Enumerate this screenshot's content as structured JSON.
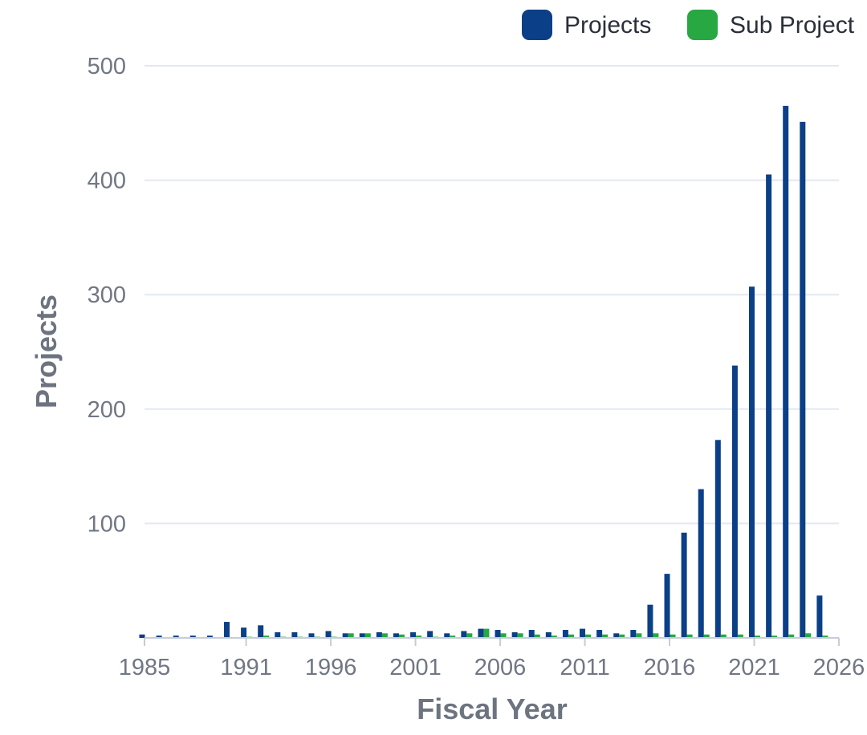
{
  "chart_data": {
    "type": "bar",
    "xlabel": "Fiscal Year",
    "ylabel": "Projects",
    "ylim": [
      0,
      500
    ],
    "yticks": [
      100,
      200,
      300,
      400,
      500
    ],
    "grid": true,
    "legend_position": "top-right",
    "x_range": [
      1985,
      2026
    ],
    "x_tick_labels": [
      "1985",
      "1991",
      "1996",
      "2001",
      "2006",
      "2011",
      "2016",
      "2021",
      "2026"
    ],
    "categories": [
      1985,
      1986,
      1987,
      1988,
      1989,
      1990,
      1991,
      1992,
      1993,
      1994,
      1995,
      1996,
      1997,
      1998,
      1999,
      2000,
      2001,
      2002,
      2003,
      2004,
      2005,
      2006,
      2007,
      2008,
      2009,
      2010,
      2011,
      2012,
      2013,
      2014,
      2015,
      2016,
      2017,
      2018,
      2019,
      2020,
      2021,
      2022,
      2023,
      2024,
      2025,
      2026
    ],
    "series": [
      {
        "name": "Projects",
        "color": "#0b3f87",
        "values": [
          3,
          2,
          2,
          2,
          2,
          14,
          9,
          11,
          5,
          5,
          4,
          6,
          4,
          4,
          5,
          4,
          5,
          6,
          4,
          6,
          8,
          7,
          5,
          7,
          5,
          7,
          8,
          7,
          4,
          7,
          29,
          56,
          92,
          130,
          173,
          238,
          307,
          405,
          465,
          451,
          37,
          0
        ]
      },
      {
        "name": "Sub Project",
        "color": "#27a843",
        "values": [
          0,
          0,
          0,
          0,
          0,
          0,
          1,
          2,
          1,
          1,
          1,
          1,
          4,
          4,
          4,
          3,
          2,
          1,
          2,
          4,
          8,
          4,
          4,
          3,
          2,
          3,
          3,
          3,
          3,
          4,
          4,
          3,
          3,
          3,
          3,
          3,
          2,
          2,
          3,
          4,
          2,
          0
        ]
      }
    ]
  }
}
